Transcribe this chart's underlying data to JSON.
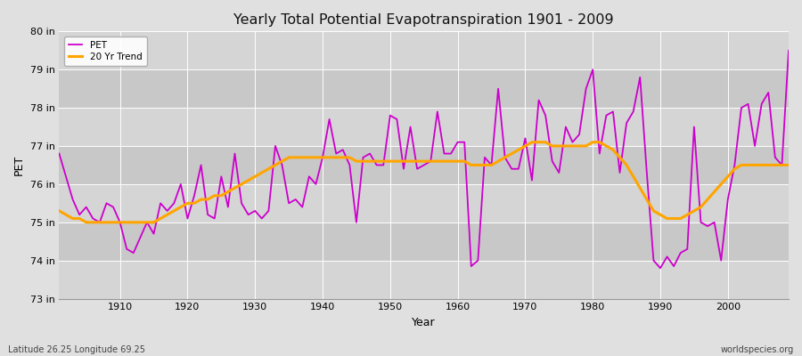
{
  "title": "Yearly Total Potential Evapotranspiration 1901 - 2009",
  "xlabel": "Year",
  "ylabel": "PET",
  "bottom_left_label": "Latitude 26.25 Longitude 69.25",
  "bottom_right_label": "worldspecies.org",
  "ylim": [
    73,
    80
  ],
  "yticks": [
    73,
    74,
    75,
    76,
    77,
    78,
    79,
    80
  ],
  "ytick_labels": [
    "73 in",
    "74 in",
    "75 in",
    "76 in",
    "77 in",
    "78 in",
    "79 in",
    "80 in"
  ],
  "pet_color": "#cc00cc",
  "trend_color": "#ffa500",
  "bg_color": "#e0e0e0",
  "band_colors": [
    "#d0d0d0",
    "#c8c8c8"
  ],
  "grid_color": "#ffffff",
  "years": [
    1901,
    1902,
    1903,
    1904,
    1905,
    1906,
    1907,
    1908,
    1909,
    1910,
    1911,
    1912,
    1913,
    1914,
    1915,
    1916,
    1917,
    1918,
    1919,
    1920,
    1921,
    1922,
    1923,
    1924,
    1925,
    1926,
    1927,
    1928,
    1929,
    1930,
    1931,
    1932,
    1933,
    1934,
    1935,
    1936,
    1937,
    1938,
    1939,
    1940,
    1941,
    1942,
    1943,
    1944,
    1945,
    1946,
    1947,
    1948,
    1949,
    1950,
    1951,
    1952,
    1953,
    1954,
    1955,
    1956,
    1957,
    1958,
    1959,
    1960,
    1961,
    1962,
    1963,
    1964,
    1965,
    1966,
    1967,
    1968,
    1969,
    1970,
    1971,
    1972,
    1973,
    1974,
    1975,
    1976,
    1977,
    1978,
    1979,
    1980,
    1981,
    1982,
    1983,
    1984,
    1985,
    1986,
    1987,
    1988,
    1989,
    1990,
    1991,
    1992,
    1993,
    1994,
    1995,
    1996,
    1997,
    1998,
    1999,
    2000,
    2001,
    2002,
    2003,
    2004,
    2005,
    2006,
    2007,
    2008,
    2009
  ],
  "pet_values": [
    76.8,
    76.2,
    75.6,
    75.2,
    75.4,
    75.1,
    75.0,
    75.5,
    75.4,
    75.0,
    74.3,
    74.2,
    74.6,
    75.0,
    74.7,
    75.5,
    75.3,
    75.5,
    76.0,
    75.1,
    75.7,
    76.5,
    75.2,
    75.1,
    76.2,
    75.4,
    76.8,
    75.5,
    75.2,
    75.3,
    75.1,
    75.3,
    77.0,
    76.5,
    75.5,
    75.6,
    75.4,
    76.2,
    76.0,
    76.7,
    77.7,
    76.8,
    76.9,
    76.5,
    75.0,
    76.7,
    76.8,
    76.5,
    76.5,
    77.8,
    77.7,
    76.4,
    77.5,
    76.4,
    76.5,
    76.6,
    77.9,
    76.8,
    76.8,
    77.1,
    77.1,
    73.85,
    74.0,
    76.7,
    76.5,
    78.5,
    76.7,
    76.4,
    76.4,
    77.2,
    76.1,
    78.2,
    77.8,
    76.6,
    76.3,
    77.5,
    77.1,
    77.3,
    78.5,
    79.0,
    76.8,
    77.8,
    77.9,
    76.3,
    77.6,
    77.9,
    78.8,
    76.3,
    74.0,
    73.8,
    74.1,
    73.85,
    74.2,
    74.3,
    77.5,
    75.0,
    74.9,
    75.0,
    74.0,
    75.6,
    76.5,
    78.0,
    78.1,
    77.0,
    78.1,
    78.4,
    76.7,
    76.5,
    79.5
  ],
  "trend_values": [
    75.3,
    75.2,
    75.1,
    75.1,
    75.0,
    75.0,
    75.0,
    75.0,
    75.0,
    75.0,
    75.0,
    75.0,
    75.0,
    75.0,
    75.0,
    75.1,
    75.2,
    75.3,
    75.4,
    75.5,
    75.5,
    75.6,
    75.6,
    75.7,
    75.7,
    75.8,
    75.9,
    76.0,
    76.1,
    76.2,
    76.3,
    76.4,
    76.5,
    76.6,
    76.7,
    76.7,
    76.7,
    76.7,
    76.7,
    76.7,
    76.7,
    76.7,
    76.7,
    76.7,
    76.6,
    76.6,
    76.6,
    76.6,
    76.6,
    76.6,
    76.6,
    76.6,
    76.6,
    76.6,
    76.6,
    76.6,
    76.6,
    76.6,
    76.6,
    76.6,
    76.6,
    76.5,
    76.5,
    76.5,
    76.5,
    76.6,
    76.7,
    76.8,
    76.9,
    77.0,
    77.1,
    77.1,
    77.1,
    77.0,
    77.0,
    77.0,
    77.0,
    77.0,
    77.0,
    77.1,
    77.1,
    77.0,
    76.9,
    76.7,
    76.5,
    76.2,
    75.9,
    75.6,
    75.3,
    75.2,
    75.1,
    75.1,
    75.1,
    75.2,
    75.3,
    75.4,
    75.6,
    75.8,
    76.0,
    76.2,
    76.4,
    76.5,
    76.5,
    76.5,
    76.5,
    76.5,
    76.5,
    76.5,
    76.5
  ]
}
